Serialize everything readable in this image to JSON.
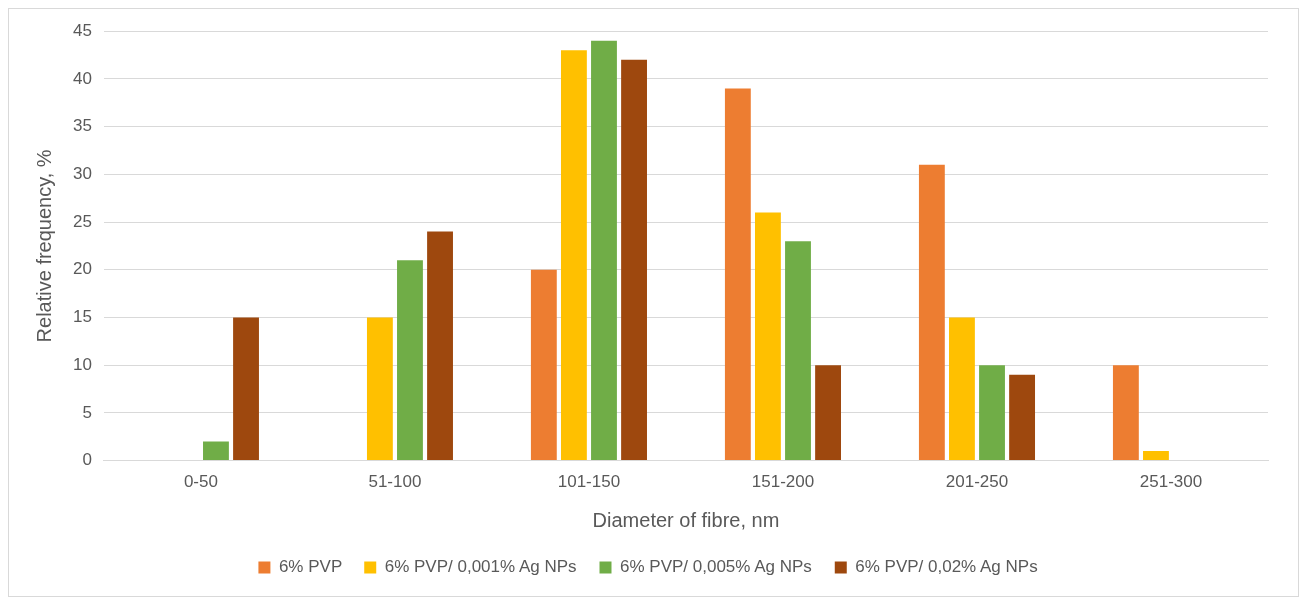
{
  "chart_data": {
    "type": "bar",
    "xlabel": "Diameter of fibre, nm",
    "ylabel": "Relative frequency, %",
    "categories": [
      "0-50",
      "51-100",
      "101-150",
      "151-200",
      "201-250",
      "251-300"
    ],
    "series": [
      {
        "name": "6% PVP",
        "color": "#ed7d31",
        "values": [
          0,
          0,
          20,
          39,
          31,
          10
        ]
      },
      {
        "name": "6% PVP/ 0,001% Ag NPs",
        "color": "#ffc000",
        "values": [
          0,
          15,
          43,
          26,
          15,
          1
        ]
      },
      {
        "name": "6% PVP/ 0,005% Ag NPs",
        "color": "#70ad47",
        "values": [
          2,
          21,
          44,
          23,
          10,
          0
        ]
      },
      {
        "name": "6% PVP/ 0,02% Ag NPs",
        "color": "#9e480e",
        "values": [
          15,
          24,
          42,
          10,
          9,
          0
        ]
      }
    ],
    "ylim": [
      0,
      45
    ],
    "yticks": [
      0,
      5,
      10,
      15,
      20,
      25,
      30,
      35,
      40,
      45
    ],
    "grid": "y",
    "legend": "bottom"
  }
}
